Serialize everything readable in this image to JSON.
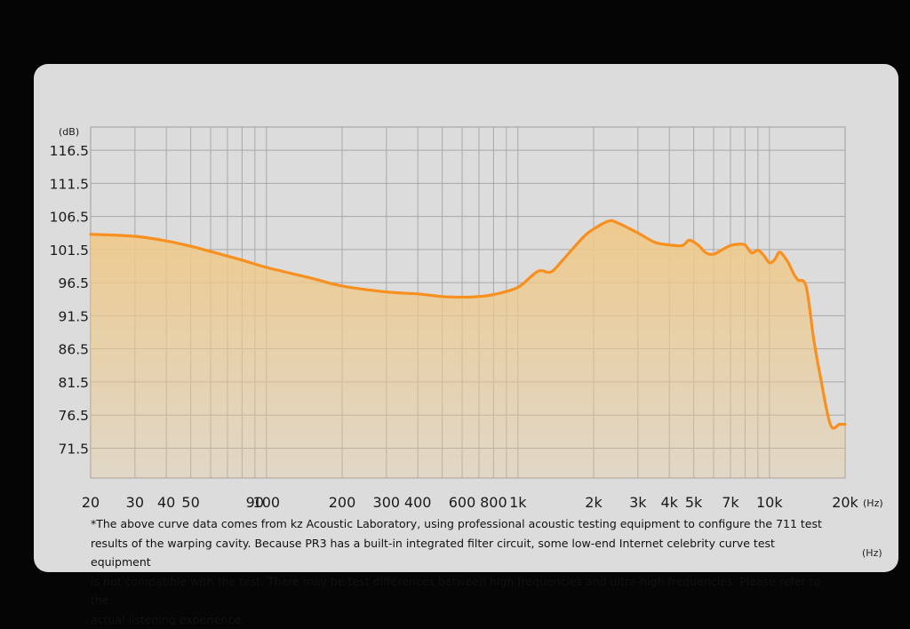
{
  "chart_data": {
    "type": "area",
    "y_unit_label": "(dB)",
    "x_unit_label": "(Hz)",
    "y_ticks": [
      116.5,
      111.5,
      106.5,
      101.5,
      96.5,
      91.5,
      86.5,
      81.5,
      76.5,
      71.5
    ],
    "ylim": [
      67.0,
      120.0
    ],
    "x_scale": "log",
    "xlim": [
      20,
      20000
    ],
    "x_gridlines": [
      30,
      40,
      50,
      60,
      70,
      80,
      90,
      100,
      200,
      300,
      400,
      500,
      600,
      700,
      800,
      900,
      1000,
      2000,
      3000,
      4000,
      5000,
      6000,
      7000,
      8000,
      9000,
      10000
    ],
    "x_tick_labels": [
      {
        "value": 20,
        "label": "20"
      },
      {
        "value": 30,
        "label": "30"
      },
      {
        "value": 40,
        "label": "40"
      },
      {
        "value": 50,
        "label": "50"
      },
      {
        "value": 90,
        "label": "90"
      },
      {
        "value": 100,
        "label": "100"
      },
      {
        "value": 200,
        "label": "200"
      },
      {
        "value": 300,
        "label": "300"
      },
      {
        "value": 400,
        "label": "400"
      },
      {
        "value": 600,
        "label": "600"
      },
      {
        "value": 800,
        "label": "800"
      },
      {
        "value": 1000,
        "label": "1k"
      },
      {
        "value": 2000,
        "label": "2k"
      },
      {
        "value": 3000,
        "label": "3k"
      },
      {
        "value": 4000,
        "label": "4k"
      },
      {
        "value": 5000,
        "label": "5k"
      },
      {
        "value": 7000,
        "label": "7k"
      },
      {
        "value": 10000,
        "label": "10k"
      },
      {
        "value": 20000,
        "label": "20k"
      }
    ],
    "grid": true,
    "series": [
      {
        "color": "#f7901e",
        "fill": "#efc98a",
        "x": [
          20,
          30,
          40,
          50,
          60,
          80,
          100,
          150,
          200,
          300,
          400,
          500,
          600,
          700,
          800,
          1000,
          1200,
          1350,
          1500,
          1800,
          2000,
          2300,
          2500,
          3000,
          3500,
          4000,
          4500,
          4800,
          5200,
          5600,
          6000,
          6500,
          7000,
          7500,
          8000,
          8500,
          9000,
          9500,
          10000,
          10500,
          11000,
          11800,
          12500,
          13000,
          14000,
          15000,
          16000,
          17500,
          19000,
          20000
        ],
        "y": [
          103.8,
          103.5,
          102.8,
          102.0,
          101.2,
          99.9,
          98.8,
          97.2,
          96.0,
          95.1,
          94.8,
          94.4,
          94.3,
          94.4,
          94.7,
          95.8,
          98.2,
          98.1,
          99.8,
          103.2,
          104.6,
          105.8,
          105.5,
          104.0,
          102.6,
          102.2,
          102.1,
          102.9,
          102.2,
          101.0,
          100.8,
          101.5,
          102.1,
          102.3,
          102.2,
          101.0,
          101.4,
          100.6,
          99.5,
          100.0,
          101.1,
          99.7,
          97.8,
          96.9,
          95.9,
          88.0,
          82.0,
          75.0,
          75.1,
          75.1
        ]
      }
    ]
  },
  "footnote": "*The above curve data comes from kz Acoustic Laboratory, using professional acoustic testing equipment to configure the 711 test\n results of the warping cavity. Because PR3 has a built-in integrated filter circuit, some low-end Internet celebrity curve test equipment\nis not compatible with the test. There may be test differences between high frequencies and ultra-high frequencies. Please refer to the\nactual listening experience.",
  "hz_note": "(Hz)"
}
